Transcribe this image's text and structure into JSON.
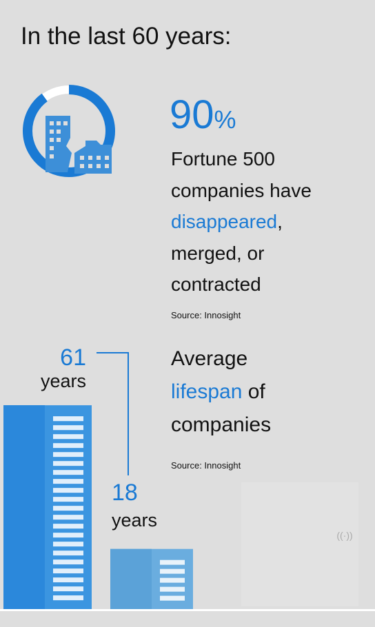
{
  "title": "In the last 60 years:",
  "stat": {
    "value": 90,
    "unit": "%",
    "line1": "Fortune 500",
    "line2": "companies have",
    "highlight": "disappeared",
    "comma": ",",
    "line4": "merged, or",
    "line5": "contracted",
    "source": "Source: Innosight"
  },
  "lifespan": {
    "line1": "Average",
    "highlight": "lifespan",
    "of": "of",
    "line3": "companies",
    "source": "Source: Innosight",
    "before": {
      "value": 61,
      "label": "years"
    },
    "after": {
      "value": 18,
      "label": "years"
    }
  }
}
